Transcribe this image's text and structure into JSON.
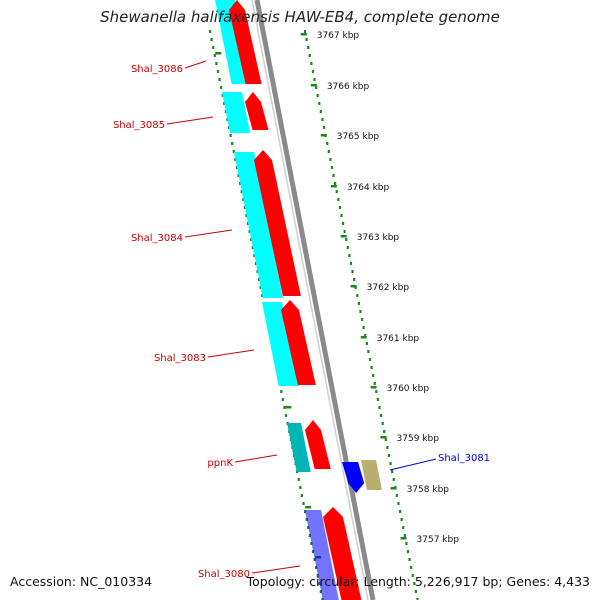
{
  "title": "Shewanella halifaxensis HAW-EB4, complete genome",
  "footer": {
    "accession": "Accession: NC_010334",
    "summary": "Topology: circular; Length: 5,226,917 bp; Genes: 4,433"
  },
  "colors": {
    "left_gene_label": "#cc0000",
    "right_gene_label": "#0000cc",
    "backbone": "#8a8a8a",
    "tick": "#1a8a1a",
    "cds": "#ff0000",
    "gene": "#00ffff",
    "gene_dark": "#00b5b5",
    "rna": "#0000ff",
    "misc": "#b8b070"
  },
  "kbp_labels": [
    "3767 kbp",
    "3766 kbp",
    "3765 kbp",
    "3764 kbp",
    "3763 kbp",
    "3762 kbp",
    "3761 kbp",
    "3760 kbp",
    "3759 kbp",
    "3758 kbp",
    "3757 kbp"
  ],
  "left_genes": [
    "Shal_3086",
    "Shal_3085",
    "Shal_3084",
    "Shal_3083",
    "ppnK",
    "Shal_3080"
  ],
  "right_genes": [
    "Shal_3081"
  ]
}
